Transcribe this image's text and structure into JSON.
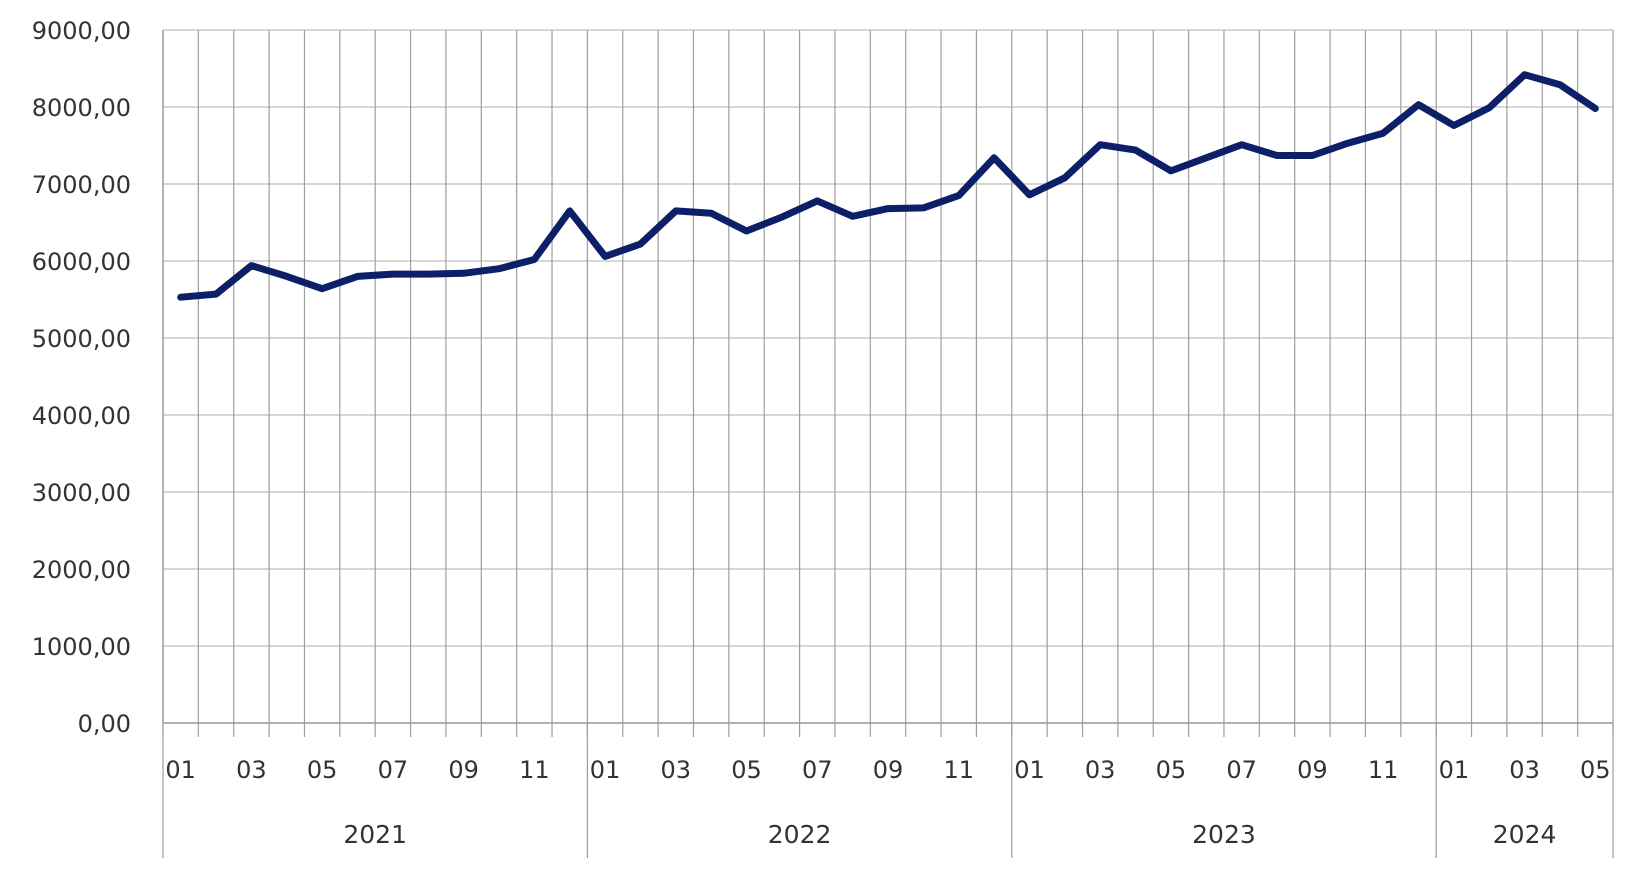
{
  "chart_data": {
    "type": "line",
    "title": "",
    "xlabel": "",
    "ylabel": "",
    "ylim": [
      0,
      9000
    ],
    "y_ticks": [
      0,
      1000,
      2000,
      3000,
      4000,
      5000,
      6000,
      7000,
      8000,
      9000
    ],
    "y_tick_labels": [
      "0,00",
      "1000,00",
      "2000,00",
      "3000,00",
      "4000,00",
      "5000,00",
      "6000,00",
      "7000,00",
      "8000,00",
      "9000,00"
    ],
    "grid": true,
    "legend": "none",
    "line_color": "#0d1f66",
    "x": [
      "2021-01",
      "2021-02",
      "2021-03",
      "2021-04",
      "2021-05",
      "2021-06",
      "2021-07",
      "2021-08",
      "2021-09",
      "2021-10",
      "2021-11",
      "2021-12",
      "2022-01",
      "2022-02",
      "2022-03",
      "2022-04",
      "2022-05",
      "2022-06",
      "2022-07",
      "2022-08",
      "2022-09",
      "2022-10",
      "2022-11",
      "2022-12",
      "2023-01",
      "2023-02",
      "2023-03",
      "2023-04",
      "2023-05",
      "2023-06",
      "2023-07",
      "2023-08",
      "2023-09",
      "2023-10",
      "2023-11",
      "2023-12",
      "2024-01",
      "2024-02",
      "2024-03",
      "2024-04",
      "2024-05"
    ],
    "month_tick_labels": [
      "01",
      "",
      "03",
      "",
      "05",
      "",
      "07",
      "",
      "09",
      "",
      "11",
      "",
      "01",
      "",
      "03",
      "",
      "05",
      "",
      "07",
      "",
      "09",
      "",
      "11",
      "",
      "01",
      "",
      "03",
      "",
      "05",
      "",
      "07",
      "",
      "09",
      "",
      "11",
      "",
      "01",
      "",
      "03",
      "",
      "05"
    ],
    "years": [
      {
        "label": "2021",
        "months": 12
      },
      {
        "label": "2022",
        "months": 12
      },
      {
        "label": "2023",
        "months": 12
      },
      {
        "label": "2024",
        "months": 5
      }
    ],
    "series": [
      {
        "values": [
          5530,
          5570,
          5940,
          5800,
          5640,
          5800,
          5830,
          5830,
          5840,
          5900,
          6020,
          6650,
          6060,
          6220,
          6650,
          6620,
          6390,
          6570,
          6780,
          6580,
          6680,
          6690,
          6850,
          7340,
          6860,
          7080,
          7510,
          7440,
          7170,
          7340,
          7510,
          7370,
          7370,
          7530,
          7660,
          8030,
          7760,
          7990,
          8420,
          8290,
          7980
        ]
      }
    ]
  }
}
